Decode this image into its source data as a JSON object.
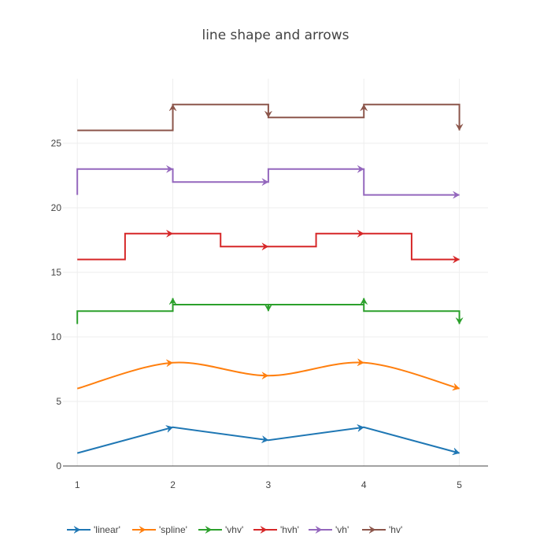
{
  "chart_data": {
    "type": "line",
    "title": "line shape and arrows",
    "xlabel": "",
    "ylabel": "",
    "xlim": [
      0.85,
      5.3
    ],
    "ylim": [
      0,
      30
    ],
    "x_ticks": [
      1,
      2,
      3,
      4,
      5
    ],
    "y_ticks": [
      0,
      5,
      10,
      15,
      20,
      25
    ],
    "grid": true,
    "legend_position": "bottom",
    "series": [
      {
        "name": "'linear'",
        "shape": "linear",
        "color": "#1f77b4",
        "x": [
          1,
          2,
          3,
          4,
          5
        ],
        "y": [
          1,
          3,
          2,
          3,
          1
        ]
      },
      {
        "name": "'spline'",
        "shape": "spline",
        "color": "#ff7f0e",
        "x": [
          1,
          2,
          3,
          4,
          5
        ],
        "y": [
          6,
          8,
          7,
          8,
          6
        ]
      },
      {
        "name": "'vhv'",
        "shape": "vhv",
        "color": "#2ca02c",
        "x": [
          1,
          2,
          3,
          4,
          5
        ],
        "y": [
          11,
          13,
          12,
          13,
          11
        ]
      },
      {
        "name": "'hvh'",
        "shape": "hvh",
        "color": "#d62728",
        "x": [
          1,
          2,
          3,
          4,
          5
        ],
        "y": [
          16,
          18,
          17,
          18,
          16
        ]
      },
      {
        "name": "'vh'",
        "shape": "vh",
        "color": "#9467bd",
        "x": [
          1,
          2,
          3,
          4,
          5
        ],
        "y": [
          21,
          23,
          22,
          23,
          21
        ]
      },
      {
        "name": "'hv'",
        "shape": "hv",
        "color": "#8c564b",
        "x": [
          1,
          2,
          3,
          4,
          5
        ],
        "y": [
          26,
          28,
          27,
          28,
          26
        ]
      }
    ]
  }
}
